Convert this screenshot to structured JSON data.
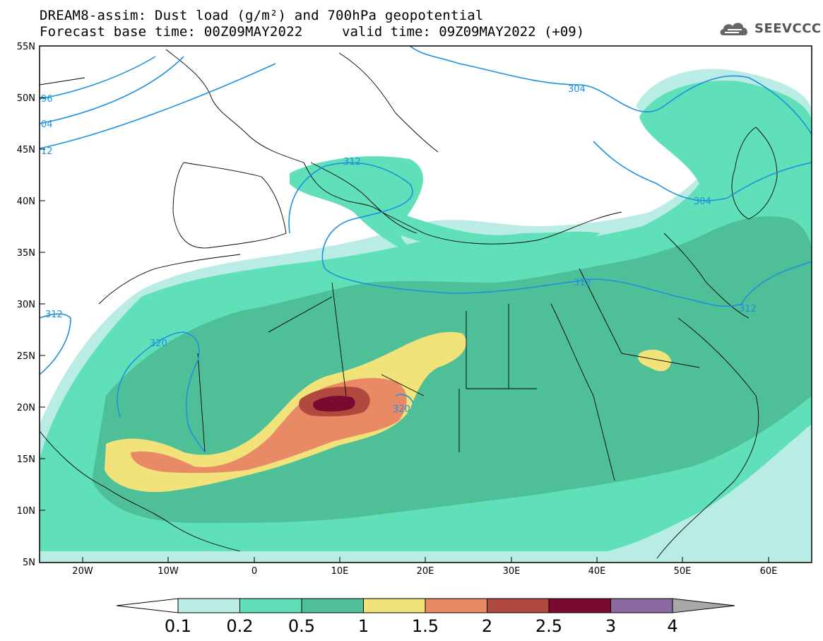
{
  "header": {
    "title_line1": "DREAM8-assim: Dust load (g/m²) and 700hPa geopotential",
    "title_line2": "Forecast base time: 00Z09MAY2022",
    "valid_time": "valid time: 09Z09MAY2022 (+09)",
    "logo_text": "SEEVCCC"
  },
  "axes": {
    "lat_labels": [
      "55N",
      "50N",
      "45N",
      "40N",
      "35N",
      "30N",
      "25N",
      "20N",
      "15N",
      "10N",
      "5N"
    ],
    "lon_labels": [
      "20W",
      "10W",
      "0",
      "10E",
      "20E",
      "30E",
      "40E",
      "50E",
      "60E"
    ]
  },
  "colorbar": {
    "ticks": [
      "0.1",
      "0.2",
      "0.5",
      "1",
      "1.5",
      "2",
      "2.5",
      "3",
      "4"
    ],
    "colors": [
      "#b8ece4",
      "#5fe0b8",
      "#4fbf98",
      "#f2e27a",
      "#e88a66",
      "#b04a3e",
      "#7a0a30",
      "#8a6aa0",
      "#a8a8a8"
    ]
  },
  "contour_labels": [
    "96",
    "04",
    "12",
    "312",
    "304",
    "304",
    "312",
    "312",
    "312",
    "320",
    "320"
  ],
  "colors": {
    "contour": "#1e90e0",
    "background": "#ffffff"
  }
}
